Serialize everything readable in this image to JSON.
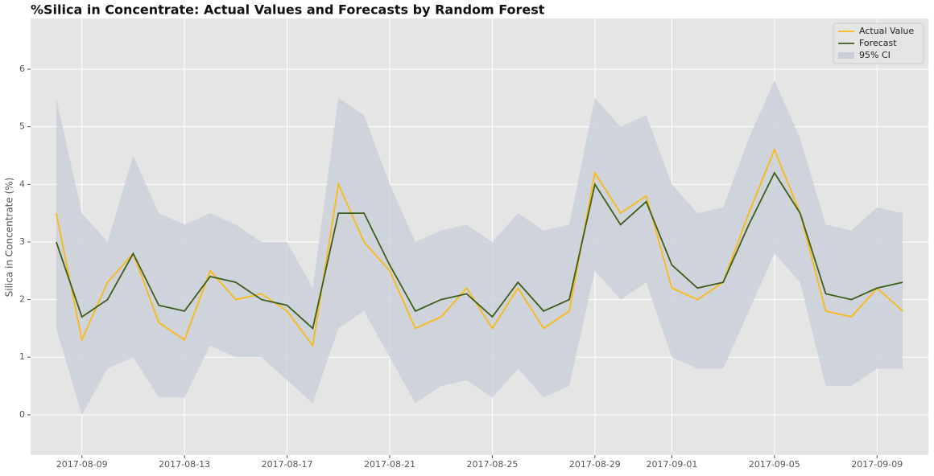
{
  "chart_data": {
    "type": "line",
    "title": "%Silica in Concentrate: Actual Values and Forecasts by Random Forest",
    "y_label": "Silica in Concentrate (%)",
    "x": [
      "2017-08-08",
      "2017-08-09",
      "2017-08-10",
      "2017-08-11",
      "2017-08-12",
      "2017-08-13",
      "2017-08-14",
      "2017-08-15",
      "2017-08-16",
      "2017-08-17",
      "2017-08-18",
      "2017-08-19",
      "2017-08-20",
      "2017-08-21",
      "2017-08-22",
      "2017-08-23",
      "2017-08-24",
      "2017-08-25",
      "2017-08-26",
      "2017-08-27",
      "2017-08-28",
      "2017-08-29",
      "2017-08-30",
      "2017-08-31",
      "2017-09-01",
      "2017-09-02",
      "2017-09-03",
      "2017-09-04",
      "2017-09-05",
      "2017-09-06",
      "2017-09-07",
      "2017-09-08",
      "2017-09-09",
      "2017-09-10"
    ],
    "series": [
      {
        "name": "Actual Value",
        "color": "#fbb914",
        "values": [
          3.5,
          1.3,
          2.3,
          2.8,
          1.6,
          1.3,
          2.5,
          2.0,
          2.1,
          1.8,
          1.2,
          4.0,
          3.0,
          2.5,
          1.5,
          1.7,
          2.2,
          1.5,
          2.2,
          1.5,
          1.8,
          4.2,
          3.5,
          3.8,
          2.2,
          2.0,
          2.3,
          3.5,
          4.6,
          3.5,
          1.8,
          1.7,
          2.2,
          1.8
        ]
      },
      {
        "name": "Forecast",
        "color": "#3b5e1b",
        "values": [
          3.0,
          1.7,
          2.0,
          2.8,
          1.9,
          1.8,
          2.4,
          2.3,
          2.0,
          1.9,
          1.5,
          3.5,
          3.5,
          2.6,
          1.8,
          2.0,
          2.1,
          1.7,
          2.3,
          1.8,
          2.0,
          4.0,
          3.3,
          3.7,
          2.6,
          2.2,
          2.3,
          3.3,
          4.2,
          3.5,
          2.1,
          2.0,
          2.2,
          2.3
        ]
      }
    ],
    "band": {
      "name": "95% CI",
      "color": "#c9ced8",
      "lower": [
        1.5,
        0.0,
        0.8,
        1.0,
        0.3,
        0.3,
        1.2,
        1.0,
        1.0,
        0.6,
        0.2,
        1.5,
        1.8,
        1.0,
        0.2,
        0.5,
        0.6,
        0.3,
        0.8,
        0.3,
        0.5,
        2.5,
        2.0,
        2.3,
        1.0,
        0.8,
        0.8,
        1.8,
        2.8,
        2.3,
        0.5,
        0.5,
        0.8,
        0.8
      ],
      "upper": [
        5.5,
        3.5,
        3.0,
        4.5,
        3.5,
        3.3,
        3.5,
        3.3,
        3.0,
        3.0,
        2.2,
        5.5,
        5.2,
        4.0,
        3.0,
        3.2,
        3.3,
        3.0,
        3.5,
        3.2,
        3.3,
        5.5,
        5.0,
        5.2,
        4.0,
        3.5,
        3.6,
        4.8,
        5.8,
        4.8,
        3.3,
        3.2,
        3.6,
        3.5
      ]
    },
    "xlim": [
      "2017-08-07",
      "2017-09-11"
    ],
    "xticks": [
      "2017-08-09",
      "2017-08-13",
      "2017-08-17",
      "2017-08-21",
      "2017-08-25",
      "2017-08-29",
      "2017-09-01",
      "2017-09-05",
      "2017-09-09"
    ],
    "ylim": [
      -0.7,
      6.88
    ],
    "yticks": [
      0,
      1,
      2,
      3,
      4,
      5,
      6
    ],
    "grid": true,
    "legend": "upper-right"
  }
}
